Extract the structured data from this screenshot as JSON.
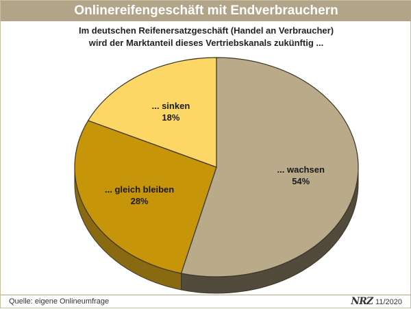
{
  "header": {
    "title": "Onlinereifengeschäft mit Endverbrauchern"
  },
  "footer": {
    "source": "Quelle: eigene Onlineumfrage",
    "logo_text": "NRZ",
    "date": "11/2020"
  },
  "chart_data": {
    "type": "pie",
    "title": "",
    "subtitle": [
      "Im deutschen Reifenersatzgeschäft (Handel an Verbraucher)",
      "wird der Marktanteil dieses Vertriebskanals zukünftig ..."
    ],
    "slices": [
      {
        "label": "... wachsen",
        "value": 54,
        "value_label": "54%",
        "color": "#b9aa8a",
        "side_color": "#524a3a"
      },
      {
        "label": "... gleich bleiben",
        "value": 28,
        "value_label": "28%",
        "color": "#c7950a",
        "side_color": "#8a6a10"
      },
      {
        "label": "... sinken",
        "value": 18,
        "value_label": "18%",
        "color": "#fcd766",
        "side_color": "#c9a73a"
      }
    ]
  }
}
